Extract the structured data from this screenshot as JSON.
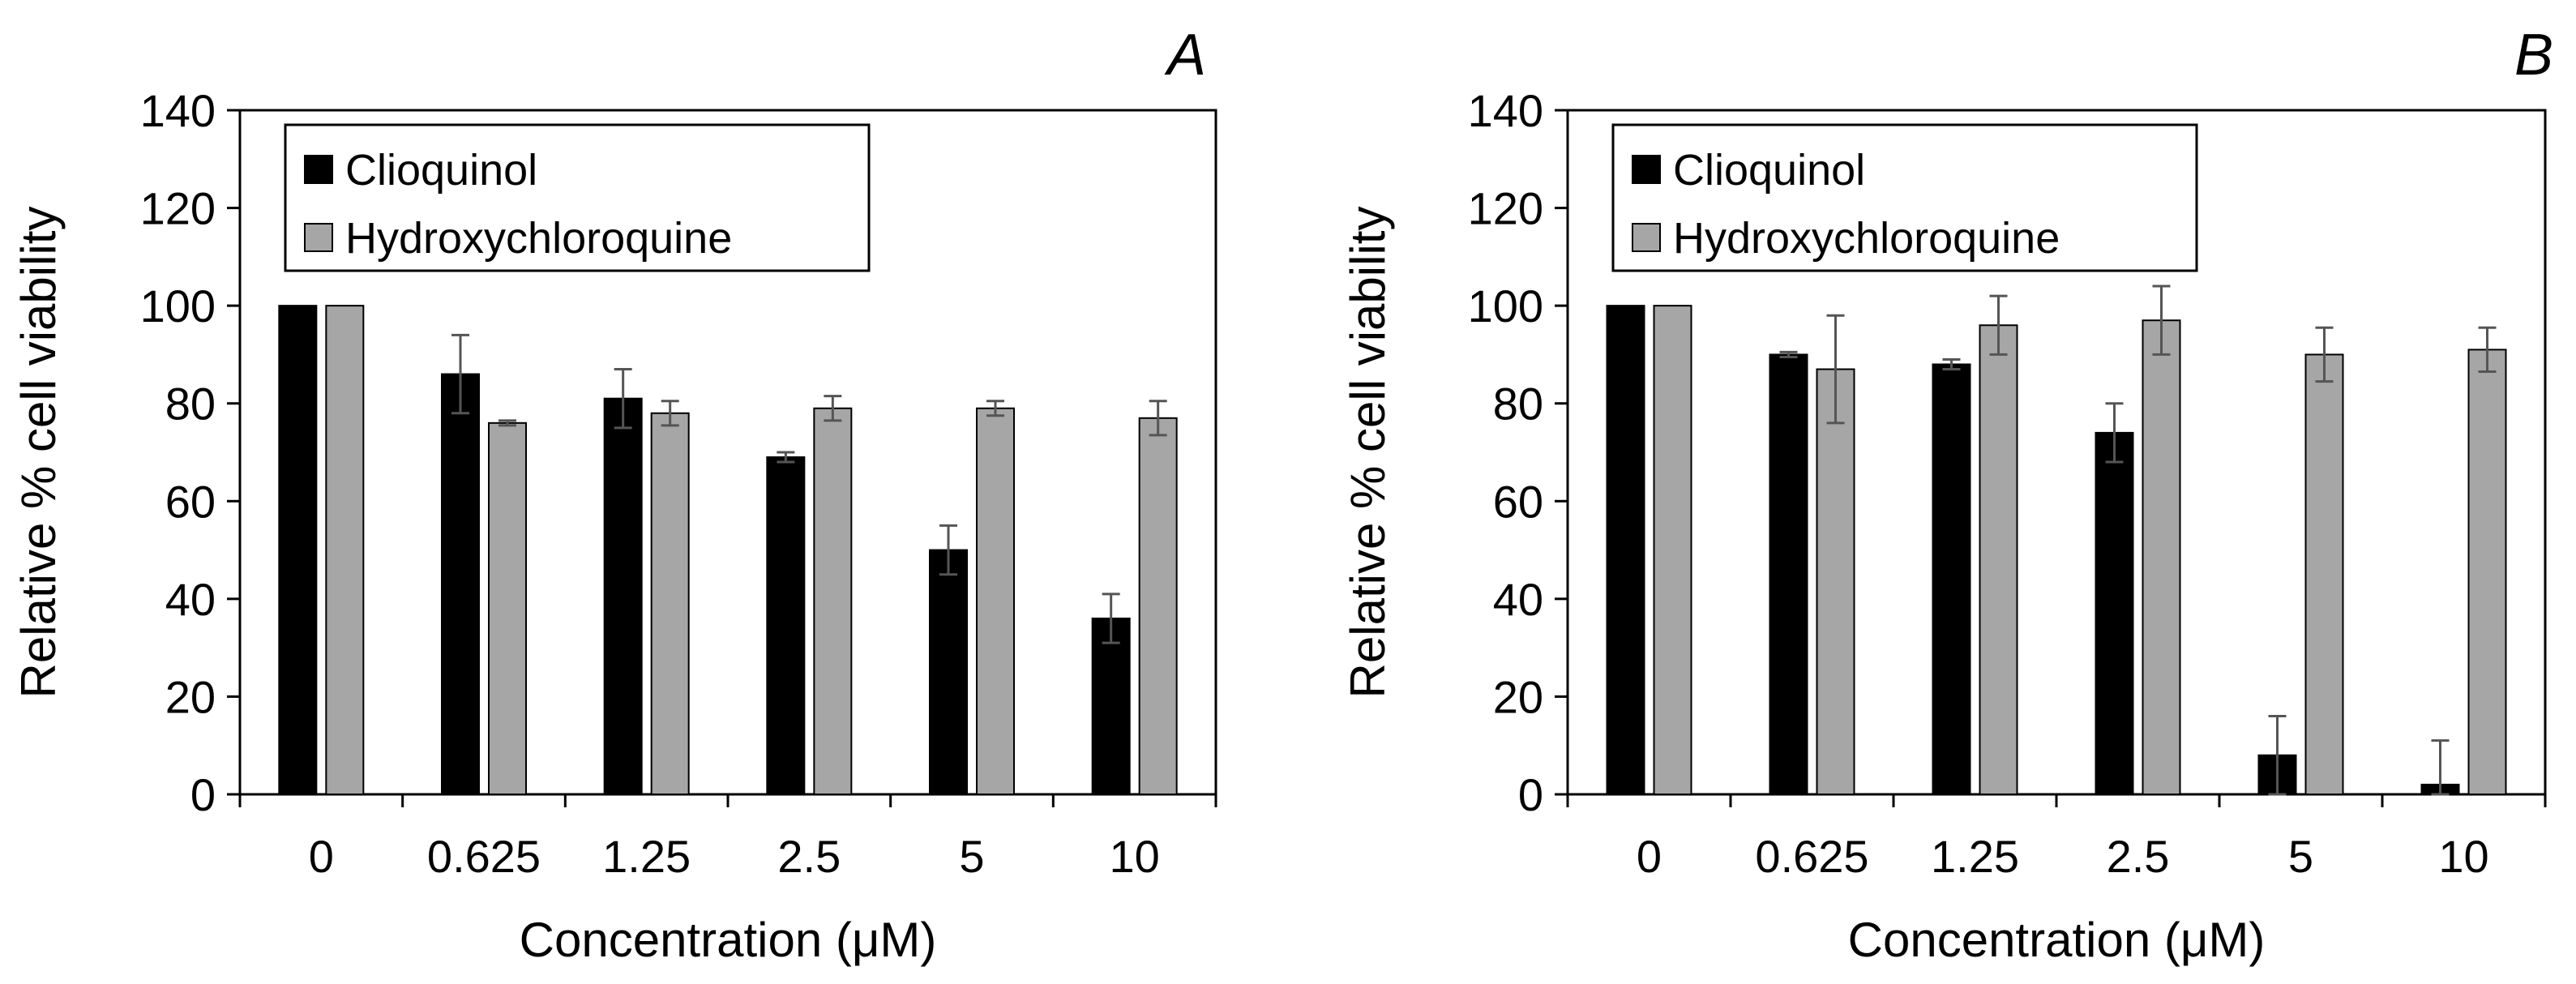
{
  "chart_data": [
    {
      "type": "bar",
      "panel_label": "A",
      "categories": [
        "0",
        "0.625",
        "1.25",
        "2.5",
        "5",
        "10"
      ],
      "xlabel": "Concentration (μM)",
      "ylabel": "Relative % cell viability",
      "ylim": [
        0,
        140
      ],
      "yticks": [
        "0",
        "20",
        "40",
        "60",
        "80",
        "100",
        "120",
        "140"
      ],
      "grid": false,
      "legend_position": "top-left",
      "series": [
        {
          "name": "Clioquinol",
          "color": "#000000",
          "values": [
            100,
            86,
            81,
            69,
            50,
            36
          ],
          "errors": [
            0,
            8,
            6,
            1,
            5,
            5
          ]
        },
        {
          "name": "Hydroxychloroquine",
          "color": "#a6a6a6",
          "values": [
            100,
            76,
            78,
            79,
            79,
            77
          ],
          "errors": [
            0,
            0.5,
            2.5,
            2.5,
            1.5,
            3.5
          ]
        }
      ]
    },
    {
      "type": "bar",
      "panel_label": "B",
      "categories": [
        "0",
        "0.625",
        "1.25",
        "2.5",
        "5",
        "10"
      ],
      "xlabel": "Concentration (μM)",
      "ylabel": "Relative % cell viability",
      "ylim": [
        0,
        140
      ],
      "yticks": [
        "0",
        "20",
        "40",
        "60",
        "80",
        "100",
        "120",
        "140"
      ],
      "grid": false,
      "legend_position": "top-left",
      "series": [
        {
          "name": "Clioquinol",
          "color": "#000000",
          "values": [
            100,
            90,
            88,
            74,
            8,
            2
          ],
          "errors": [
            0,
            0.5,
            1,
            6,
            8,
            9
          ]
        },
        {
          "name": "Hydroxychloroquine",
          "color": "#a6a6a6",
          "values": [
            100,
            87,
            96,
            97,
            90,
            91
          ],
          "errors": [
            0,
            11,
            6,
            7,
            5.5,
            4.5
          ]
        }
      ]
    }
  ]
}
